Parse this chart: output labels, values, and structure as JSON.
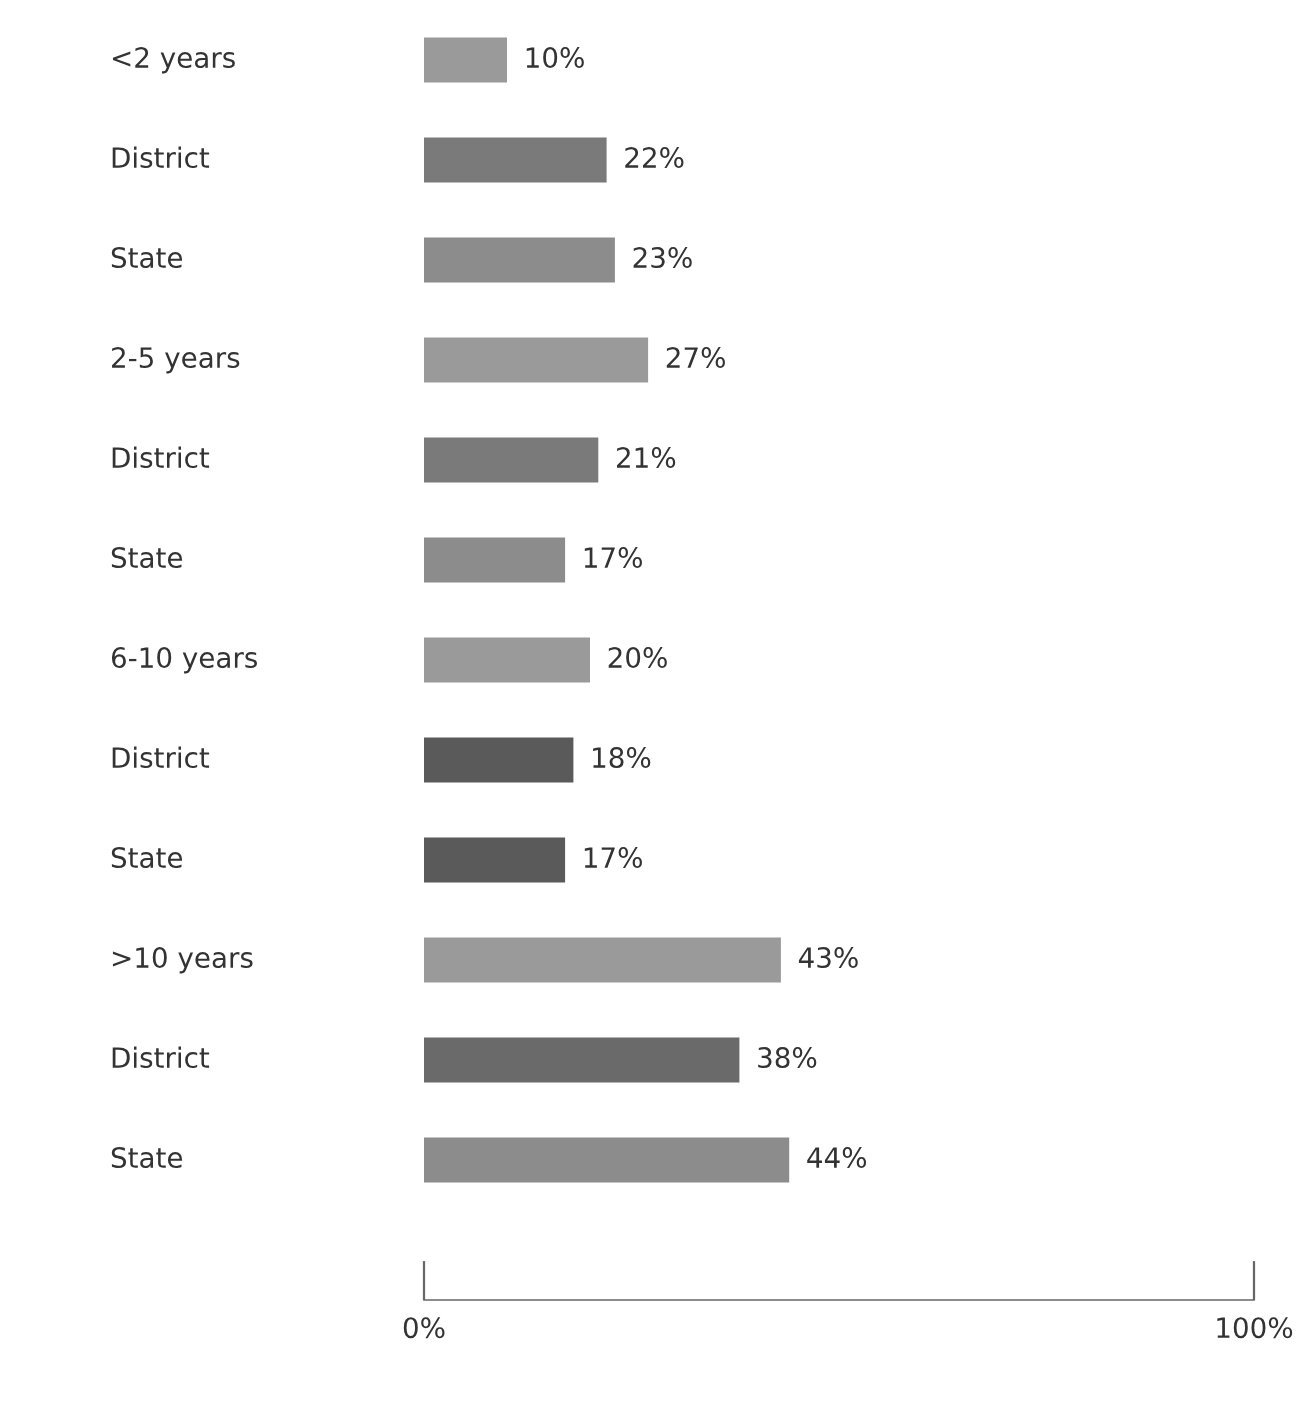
{
  "chart_data": {
    "type": "bar",
    "orientation": "horizontal",
    "categories": [
      "<2 years",
      "District",
      "State",
      "2-5 years",
      "District",
      "State",
      "6-10 years",
      "District",
      "State",
      ">10 years",
      "District",
      "State"
    ],
    "values": [
      10,
      22,
      23,
      27,
      21,
      17,
      20,
      18,
      17,
      43,
      38,
      44
    ],
    "value_labels": [
      "10%",
      "22%",
      "23%",
      "27%",
      "21%",
      "17%",
      "20%",
      "18%",
      "17%",
      "43%",
      "38%",
      "44%"
    ],
    "colors": [
      "#9a9a9a",
      "#7a7a7a",
      "#8c8c8c",
      "#9a9a9a",
      "#7a7a7a",
      "#8c8c8c",
      "#9a9a9a",
      "#5a5a5a",
      "#5a5a5a",
      "#9a9a9a",
      "#6a6a6a",
      "#8c8c8c"
    ],
    "xlim": [
      0,
      100
    ],
    "xticks": [
      {
        "value": 0,
        "label": "0%"
      },
      {
        "value": 100,
        "label": "100%"
      }
    ],
    "grid": false,
    "legend": false
  }
}
